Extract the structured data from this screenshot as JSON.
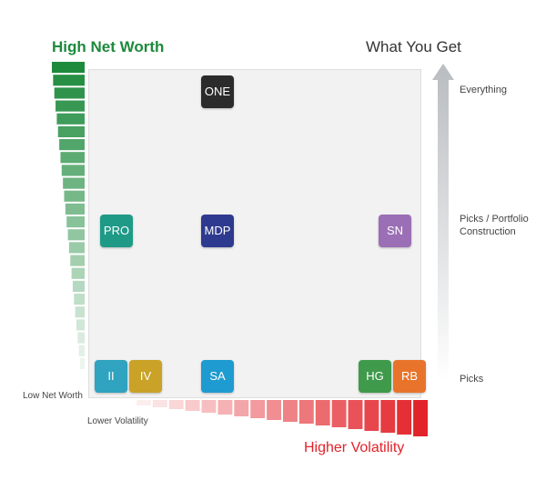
{
  "titles": {
    "net_worth_high": "High Net Worth",
    "net_worth_low": "Low Net Worth",
    "what_you_get": "What You Get",
    "volatility_high": "Higher Volatility",
    "volatility_low": "Lower Volatility"
  },
  "levels": {
    "top": "Everything",
    "mid_line1": "Picks / Portfolio",
    "mid_line2": "Construction",
    "bottom": "Picks"
  },
  "tiles": [
    {
      "label": "ONE",
      "color": "#2b2b2b"
    },
    {
      "label": "PRO",
      "color": "#1e9a86"
    },
    {
      "label": "MDP",
      "color": "#2e3a8f"
    },
    {
      "label": "SN",
      "color": "#9b6fb5"
    },
    {
      "label": "II",
      "color": "#2fa3bf"
    },
    {
      "label": "IV",
      "color": "#c9a227"
    },
    {
      "label": "SA",
      "color": "#1e9bd0"
    },
    {
      "label": "HG",
      "color": "#3f9a4b"
    },
    {
      "label": "RB",
      "color": "#e8742b"
    }
  ],
  "colors": {
    "net_worth": "#1d8a3c",
    "volatility": "#e2232a",
    "arrow": "#b9bcc0"
  }
}
